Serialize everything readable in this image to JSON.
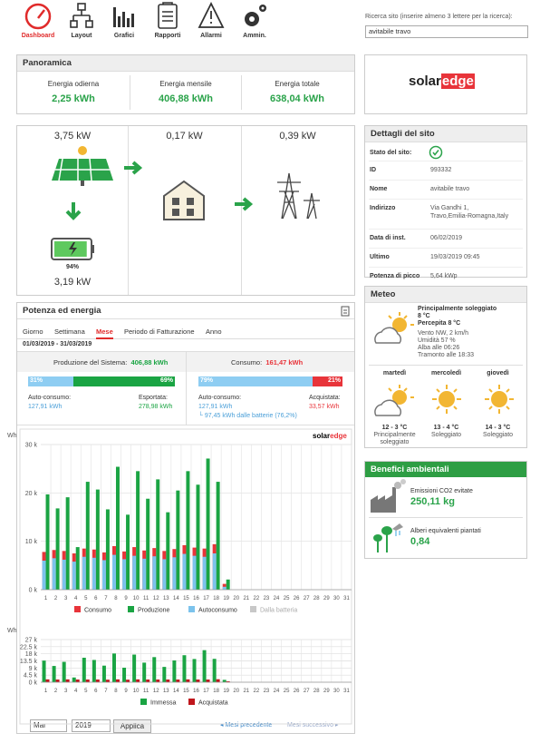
{
  "nav": {
    "items": [
      "Dashboard",
      "Layout",
      "Grafici",
      "Rapporti",
      "Allarmi",
      "Ammin."
    ]
  },
  "search": {
    "label": "Ricerca sito (inserire almeno 3 lettere per la ricerca):",
    "value": "avitabile travo"
  },
  "overview": {
    "title": "Panoramica",
    "items": [
      {
        "label": "Energia odierna",
        "value": "2,25 kWh"
      },
      {
        "label": "Energia mensile",
        "value": "406,88 kWh"
      },
      {
        "label": "Energia totale",
        "value": "638,04 kWh"
      }
    ]
  },
  "logo": {
    "part1": "solar",
    "part2": "edge"
  },
  "flow": {
    "pv": "3,75 kW",
    "load": "0,17 kW",
    "grid": "0,39 kW",
    "battery_level": {
      "value": 94,
      "label": "94%"
    },
    "battery_power": "3,19 kW"
  },
  "site_details": {
    "title": "Dettagli del sito",
    "status_label": "Stato del sito:",
    "rows": [
      [
        "ID",
        "993332"
      ],
      [
        "Nome",
        "avitabile travo"
      ],
      [
        "Indirizzo",
        "Via Gandhi 1,",
        "Travo,Emilia-Romagna,Italy"
      ],
      [
        "Data di inst.",
        "06/02/2019"
      ],
      [
        "Ultimo",
        "19/03/2019 09:45"
      ],
      [
        "Potenza di picco",
        "5,64 kWp"
      ]
    ]
  },
  "weather": {
    "title": "Meteo",
    "condition": "Principalmente soleggiato",
    "temperature": "8 °C",
    "perceived": "Percepita 8 °C",
    "wind": "Vento NW, 2 km/h",
    "humidity": "Umidità 57 %",
    "sunrise": "Alba alle 06:26",
    "sunset": "Tramonto alle 18:33",
    "forecast": [
      {
        "day": "martedì",
        "temp": "12 - 3 °C",
        "condition": [
          "Principalmente",
          "soleggiato"
        ]
      },
      {
        "day": "mercoledì",
        "temp": "13 - 4 °C",
        "condition": [
          "Soleggiato"
        ]
      },
      {
        "day": "giovedì",
        "temp": "14 - 3 °C",
        "condition": [
          "Soleggiato"
        ]
      }
    ]
  },
  "benefits": {
    "title": "Benefici ambientali",
    "items": [
      {
        "label": "Emissioni CO2 evitate",
        "value": "250,11 kg"
      },
      {
        "label": "Alberi equivalenti piantati",
        "value": "0,84"
      }
    ]
  },
  "energy": {
    "title": "Potenza ed energia",
    "tabs": [
      "Giorno",
      "Settimana",
      "Mese",
      "Periodo di Fatturazione",
      "Anno"
    ],
    "active_tab": 2,
    "date_range": "01/03/2019 - 31/03/2019",
    "production": {
      "label": "Produzione del Sistema:",
      "value": "406,88 kWh",
      "split": [
        31,
        69
      ],
      "split_labels": [
        "31%",
        "69%"
      ],
      "left_label": "Auto-consumo:",
      "left_value": "127,91 kWh",
      "right_label": "Esportata:",
      "right_value": "278,98 kWh"
    },
    "consumption": {
      "label": "Consumo:",
      "value": "161,47 kWh",
      "split": [
        79,
        21
      ],
      "split_labels": [
        "79%",
        "21%"
      ],
      "left_label": "Auto-consumo:",
      "left_value": "127,91 kWh",
      "right_label": "Acquistata:",
      "right_value": "33,57 kWh",
      "battery_note": "└ 97,45 kWh dalle batterie (76,2%)"
    },
    "month": "Mar",
    "year": "2019",
    "apply": "Applica",
    "previous": "Mesi precedente",
    "next": "Mesi successivo"
  },
  "main_chart": {
    "type": "bar",
    "y_label": "Wh",
    "categories": [
      "1",
      "2",
      "3",
      "4",
      "5",
      "6",
      "7",
      "8",
      "9",
      "10",
      "11",
      "12",
      "13",
      "14",
      "15",
      "16",
      "17",
      "18",
      "19",
      "20",
      "21",
      "22",
      "23",
      "24",
      "25",
      "26",
      "27",
      "28",
      "29",
      "30",
      "31"
    ],
    "ylim": [
      0,
      30000
    ],
    "yticks": [
      {
        "value": 0,
        "label": "0 k"
      },
      {
        "value": 10000,
        "label": "10 k"
      },
      {
        "value": 20000,
        "label": "20 k"
      },
      {
        "value": 30000,
        "label": "30 k"
      }
    ],
    "grid": true,
    "series": [
      {
        "name": "Consumo",
        "color": "#e8343a",
        "values": [
          7800,
          8200,
          8000,
          7500,
          8500,
          8300,
          7700,
          9000,
          7900,
          8800,
          8100,
          8600,
          8000,
          8400,
          9200,
          8700,
          8500,
          9400,
          1200,
          null,
          null,
          null,
          null,
          null,
          null,
          null,
          null,
          null,
          null,
          null,
          null
        ]
      },
      {
        "name": "Produzione",
        "color": "#1aa443",
        "values": [
          19700,
          16800,
          19100,
          8800,
          22300,
          20700,
          16600,
          25400,
          15500,
          24500,
          18800,
          22800,
          16000,
          20500,
          24500,
          21700,
          27100,
          22300,
          2100,
          null,
          null,
          null,
          null,
          null,
          null,
          null,
          null,
          null,
          null,
          null,
          null
        ]
      },
      {
        "name": "Autoconsumo",
        "color": "#7cc3ec",
        "values": [
          6000,
          6500,
          6200,
          5800,
          6800,
          6600,
          6100,
          7200,
          6300,
          7000,
          6400,
          6900,
          6300,
          6700,
          7400,
          7000,
          6800,
          7500,
          600,
          null,
          null,
          null,
          null,
          null,
          null,
          null,
          null,
          null,
          null,
          null,
          null
        ]
      },
      {
        "name": "Dalla batteria",
        "color": "#c8c8c8",
        "values": [
          null,
          null,
          null,
          null,
          null,
          null,
          null,
          null,
          null,
          null,
          null,
          null,
          null,
          null,
          null,
          null,
          null,
          null,
          null,
          null,
          null,
          null,
          null,
          null,
          null,
          null,
          null,
          null,
          null,
          null,
          null
        ]
      }
    ]
  },
  "grid_chart": {
    "type": "bar",
    "y_label": "Wh",
    "categories": [
      "1",
      "2",
      "3",
      "4",
      "5",
      "6",
      "7",
      "8",
      "9",
      "10",
      "11",
      "12",
      "13",
      "14",
      "15",
      "16",
      "17",
      "18",
      "19",
      "20",
      "21",
      "22",
      "23",
      "24",
      "25",
      "26",
      "27",
      "28",
      "29",
      "30",
      "31"
    ],
    "ylim": [
      0,
      27000
    ],
    "yticks": [
      {
        "value": 0,
        "label": "0 k"
      },
      {
        "value": 4500,
        "label": "4.5 k"
      },
      {
        "value": 9000,
        "label": "9 k"
      },
      {
        "value": 13500,
        "label": "13.5 k"
      },
      {
        "value": 18000,
        "label": "18 k"
      },
      {
        "value": 22500,
        "label": "22.5 k"
      },
      {
        "value": 27000,
        "label": "27 k"
      }
    ],
    "grid": true,
    "series": [
      {
        "name": "Immessa",
        "color": "#1aa443",
        "values": [
          13700,
          10300,
          12900,
          3000,
          15500,
          14100,
          10500,
          18200,
          9200,
          17500,
          12400,
          15900,
          9700,
          13800,
          17100,
          14700,
          20300,
          14800,
          1500,
          null,
          null,
          null,
          null,
          null,
          null,
          null,
          null,
          null,
          null,
          null,
          null
        ]
      },
      {
        "name": "Acquistata",
        "color": "#c0161c",
        "values": [
          1800,
          1700,
          1800,
          1700,
          1700,
          1700,
          1600,
          1800,
          1600,
          1800,
          1700,
          1700,
          1700,
          1700,
          1800,
          1700,
          1700,
          1900,
          600,
          null,
          null,
          null,
          null,
          null,
          null,
          null,
          null,
          null,
          null,
          null,
          null
        ]
      }
    ]
  }
}
